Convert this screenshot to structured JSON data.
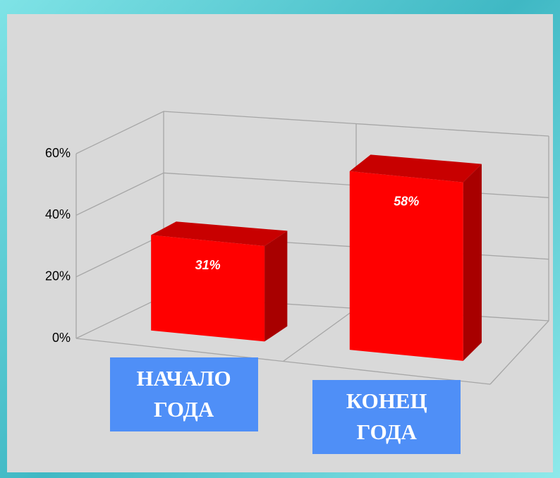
{
  "chart_data": {
    "type": "bar3d",
    "categories": [
      "НАЧАЛО ГОДА",
      "КОНЕЦ ГОДА"
    ],
    "values": [
      31,
      58
    ],
    "value_labels": [
      "31%",
      "58%"
    ],
    "color": "#ff0000",
    "ylim": [
      0,
      60
    ],
    "yticks": [
      {
        "value": 0,
        "label": "0%"
      },
      {
        "value": 20,
        "label": "20%"
      },
      {
        "value": 40,
        "label": "40%"
      },
      {
        "value": 60,
        "label": "60%"
      }
    ],
    "grid": true
  }
}
